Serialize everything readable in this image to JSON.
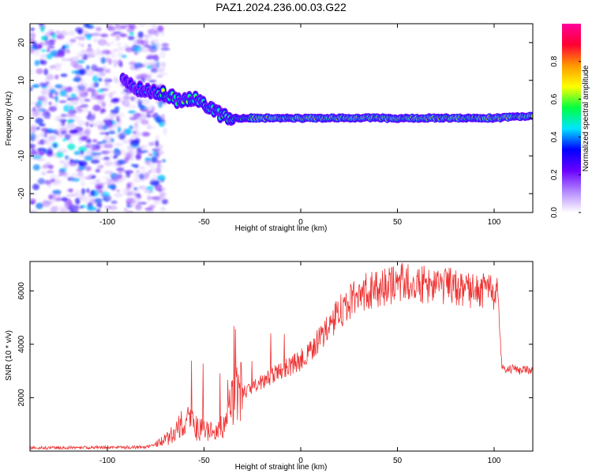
{
  "title": "PAZ1.2024.236.00.03.G22",
  "chart_data": [
    {
      "type": "heatmap",
      "xlabel": "Height of straight line (km)",
      "ylabel": "Frequency (Hz)",
      "xlim": [
        -140,
        120
      ],
      "ylim": [
        -25,
        25
      ],
      "xticks": [
        -100,
        -50,
        0,
        50,
        100
      ],
      "yticks": [
        -20,
        -10,
        0,
        10,
        20
      ],
      "xtick_labels": [
        "-100",
        "-50",
        "0",
        "50",
        "100"
      ],
      "ytick_labels": [
        "-20",
        "-10",
        "0",
        "10",
        "20"
      ],
      "colorbar": {
        "label": "Normalized spectral amplitude",
        "range": [
          0,
          1
        ],
        "ticks": [
          0.0,
          0.2,
          0.4,
          0.6,
          0.8
        ],
        "tick_labels": [
          "0.0",
          "0.2",
          "0.4",
          "0.6",
          "0.8"
        ],
        "colors": [
          "#ffffff",
          "#b388ff",
          "#6a00ff",
          "#0000ff",
          "#00e5ff",
          "#00ff40",
          "#ffff00",
          "#ff9900",
          "#ff0033",
          "#ff0099"
        ]
      },
      "ridge": {
        "x": [
          -90,
          -85,
          -80,
          -75,
          -70,
          -65,
          -60,
          -55,
          -50,
          -45,
          -40,
          -35,
          -30,
          -20,
          0,
          50,
          100,
          120
        ],
        "y": [
          10,
          8,
          7.5,
          7,
          6.5,
          5,
          4.5,
          5,
          4,
          2,
          0.5,
          0,
          0,
          0,
          0,
          0,
          0,
          0.5
        ]
      },
      "noise_region_x": [
        -140,
        -70
      ]
    },
    {
      "type": "line",
      "xlabel": "Height of straight line (km)",
      "ylabel": "SNR (10 * v/v)",
      "xlim": [
        -140,
        120
      ],
      "ylim": [
        0,
        7100
      ],
      "xticks": [
        -100,
        -50,
        0,
        50,
        100
      ],
      "yticks": [
        2000,
        4000,
        6000
      ],
      "xtick_labels": [
        "-100",
        "-50",
        "0",
        "50",
        "100"
      ],
      "ytick_labels": [
        "2000",
        "4000",
        "6000"
      ],
      "color": "#ee3333",
      "envelope": {
        "x": [
          -140,
          -80,
          -70,
          -65,
          -60,
          -55,
          -50,
          -45,
          -40,
          -35,
          -30,
          -20,
          -10,
          0,
          10,
          20,
          30,
          40,
          50,
          60,
          70,
          80,
          90,
          100,
          102,
          104,
          120
        ],
        "y": [
          120,
          150,
          400,
          700,
          1200,
          900,
          800,
          700,
          900,
          2000,
          2200,
          2600,
          3000,
          3400,
          4200,
          5200,
          5900,
          6100,
          6300,
          6300,
          6200,
          6100,
          6000,
          5900,
          5800,
          3100,
          3000
        ]
      }
    }
  ]
}
